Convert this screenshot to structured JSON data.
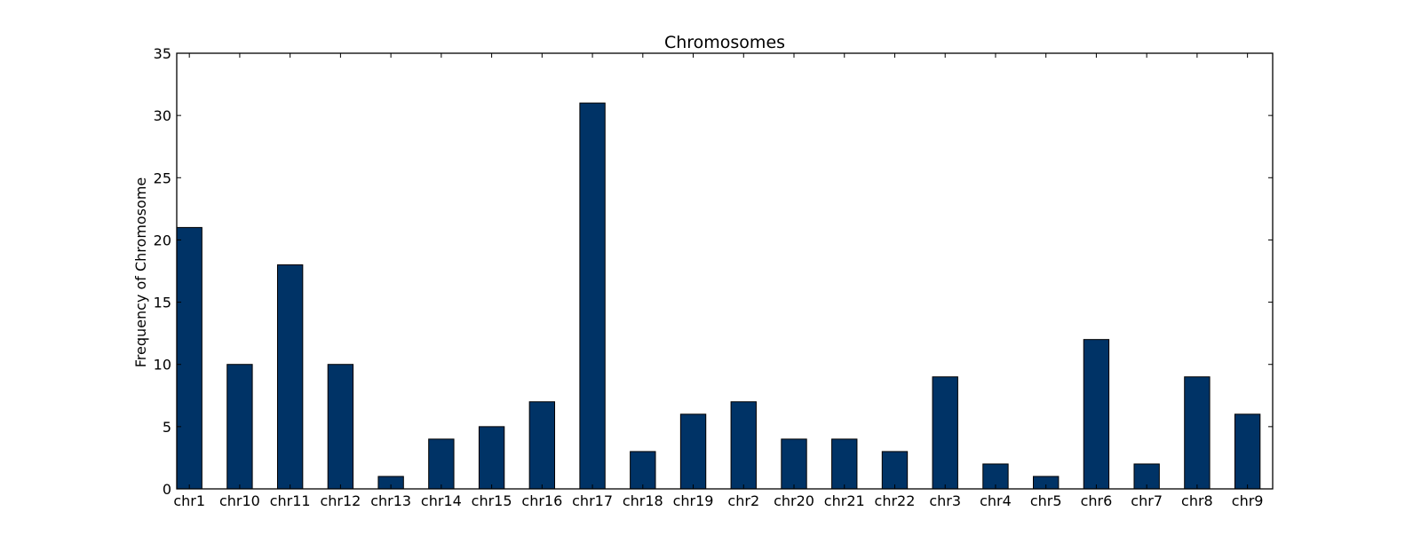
{
  "chart_data": {
    "type": "bar",
    "title": "Chromosomes",
    "xlabel": "",
    "ylabel": "Frequency of Chromosome",
    "ylim": [
      0,
      35
    ],
    "yticks": [
      0,
      5,
      10,
      15,
      20,
      25,
      30,
      35
    ],
    "grid": false,
    "bar_color": "#003366",
    "categories": [
      "chr1",
      "chr10",
      "chr11",
      "chr12",
      "chr13",
      "chr14",
      "chr15",
      "chr16",
      "chr17",
      "chr18",
      "chr19",
      "chr2",
      "chr20",
      "chr21",
      "chr22",
      "chr3",
      "chr4",
      "chr5",
      "chr6",
      "chr7",
      "chr8",
      "chr9"
    ],
    "values": [
      21,
      10,
      18,
      10,
      1,
      4,
      5,
      7,
      31,
      3,
      6,
      7,
      4,
      4,
      3,
      9,
      2,
      1,
      12,
      2,
      9,
      6
    ]
  }
}
